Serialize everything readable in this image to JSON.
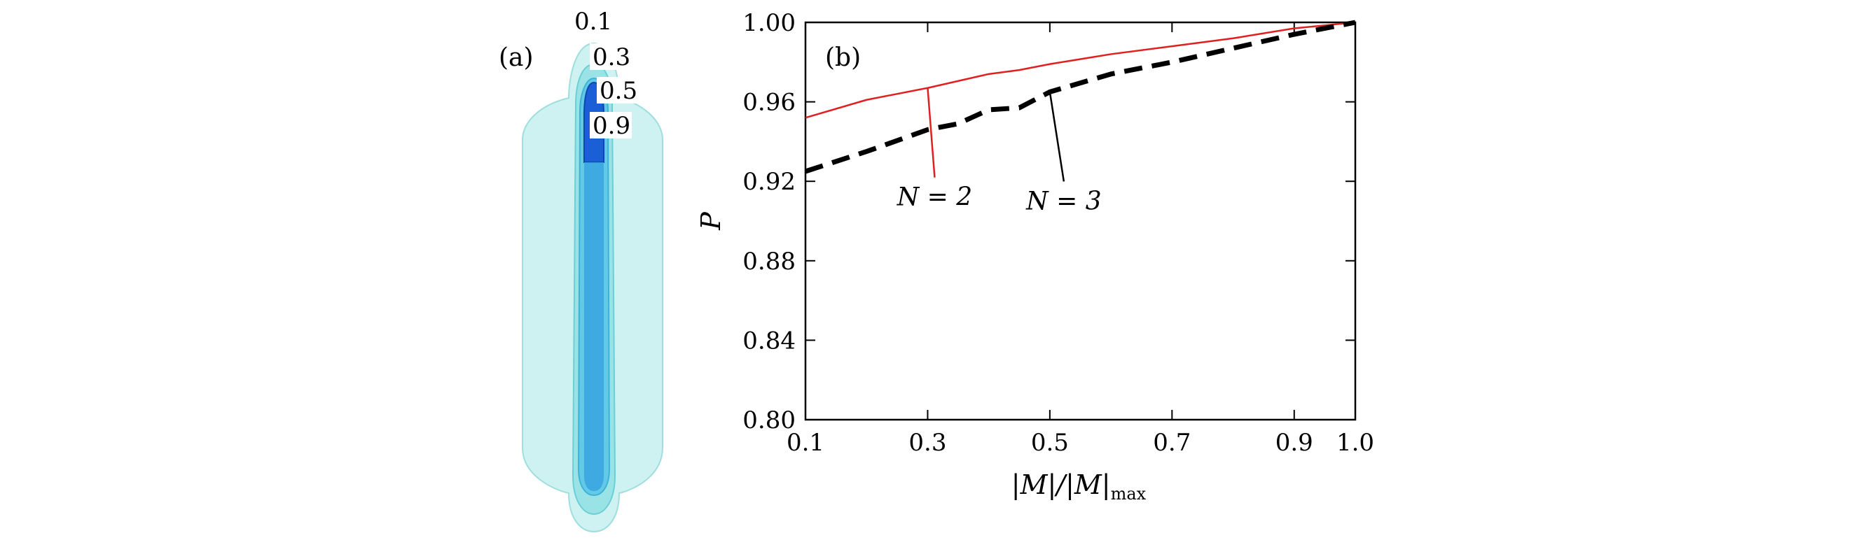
{
  "panel_a": {
    "label": "(a)",
    "contour_levels": [
      "0.1",
      "0.3",
      "0.5",
      "0.9"
    ],
    "colors": [
      "#bdeeee",
      "#8fdfe3",
      "#5cc8e6",
      "#1a5fd6"
    ]
  },
  "chart_data": {
    "type": "line",
    "panel_label": "(b)",
    "xlabel_parts": [
      "|M|/|M|",
      "max"
    ],
    "ylabel": "P",
    "xlim": [
      0.1,
      1.0
    ],
    "ylim": [
      0.8,
      1.0
    ],
    "xticks": [
      0.1,
      0.3,
      0.5,
      0.7,
      0.9,
      1.0
    ],
    "xtick_labels": [
      "0.1",
      "0.3",
      "0.5",
      "0.7",
      "0.9",
      "1.0"
    ],
    "yticks": [
      0.8,
      0.84,
      0.88,
      0.92,
      0.96,
      1.0
    ],
    "ytick_labels": [
      "0.80",
      "0.84",
      "0.88",
      "0.92",
      "0.96",
      "1.00"
    ],
    "series": [
      {
        "name": "N = 2",
        "color": "#e02020",
        "style": "solid",
        "x": [
          0.1,
          0.2,
          0.3,
          0.4,
          0.45,
          0.5,
          0.6,
          0.7,
          0.8,
          0.9,
          1.0
        ],
        "y": [
          0.952,
          0.961,
          0.967,
          0.974,
          0.976,
          0.979,
          0.984,
          0.988,
          0.992,
          0.997,
          1.0
        ]
      },
      {
        "name": "N = 3",
        "color": "#000000",
        "style": "dashed",
        "x": [
          0.1,
          0.2,
          0.3,
          0.35,
          0.4,
          0.45,
          0.5,
          0.6,
          0.7,
          0.8,
          0.9,
          1.0
        ],
        "y": [
          0.925,
          0.935,
          0.946,
          0.949,
          0.956,
          0.957,
          0.965,
          0.974,
          0.98,
          0.987,
          0.994,
          1.0
        ]
      }
    ],
    "annotations": [
      {
        "text": "N = 2",
        "x": 0.3,
        "y": 0.967,
        "color": "#e02020"
      },
      {
        "text": "N = 3",
        "x": 0.5,
        "y": 0.965,
        "color": "#000000"
      }
    ]
  }
}
